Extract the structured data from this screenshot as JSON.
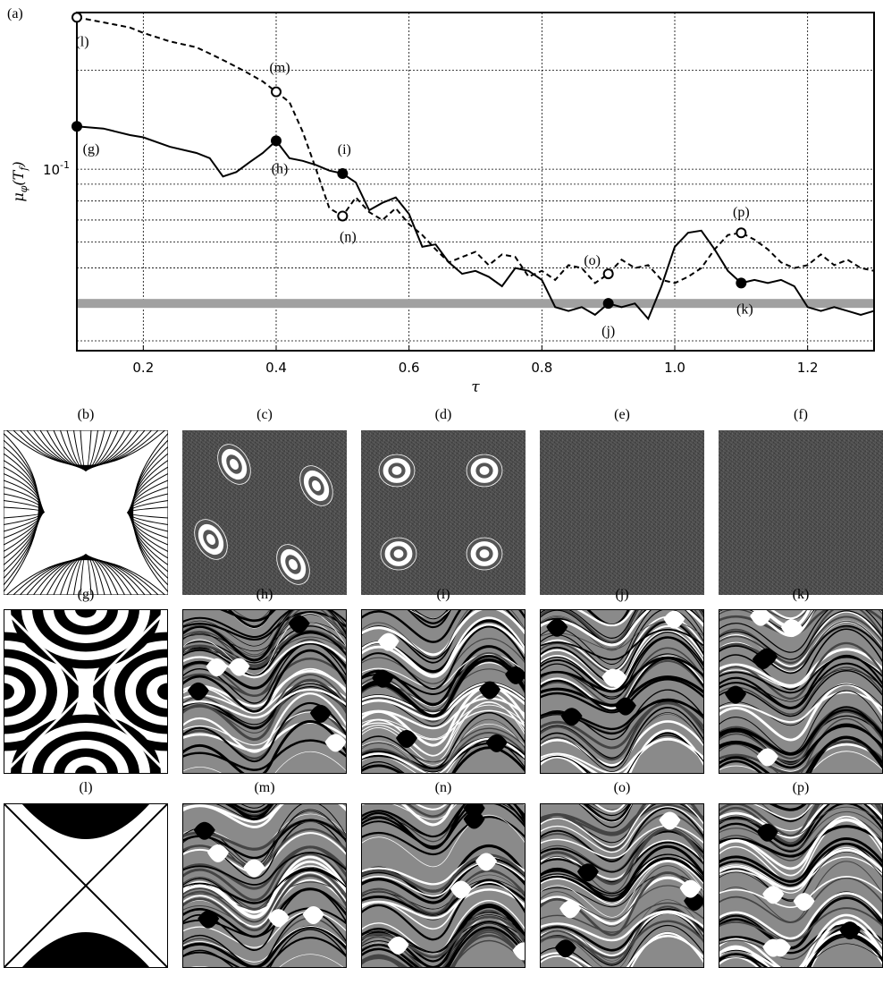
{
  "chart_data": {
    "type": "line",
    "panel_label": "(a)",
    "xlabel": "τ",
    "ylabel": "μ_φ(T_f)",
    "x_ticks": [
      "0.2",
      "0.4",
      "0.6",
      "0.8",
      "1.0",
      "1.2"
    ],
    "x_tick_values": [
      0.2,
      0.4,
      0.6,
      0.8,
      1.0,
      1.2
    ],
    "y_tick_labels": [
      {
        "value": 0.1,
        "label": "10^-1"
      }
    ],
    "xlim": [
      0.1,
      1.3
    ],
    "ylim": [
      0.028,
      0.3
    ],
    "y_scale": "log",
    "grid": true,
    "reference_band": {
      "value": 0.039,
      "color": "#a0a0a0"
    },
    "series": [
      {
        "style": "solid",
        "color": "#000000",
        "x": [
          0.1,
          0.14,
          0.18,
          0.2,
          0.24,
          0.28,
          0.3,
          0.32,
          0.34,
          0.36,
          0.38,
          0.4,
          0.42,
          0.44,
          0.46,
          0.48,
          0.5,
          0.52,
          0.54,
          0.56,
          0.58,
          0.6,
          0.62,
          0.64,
          0.66,
          0.68,
          0.7,
          0.72,
          0.74,
          0.76,
          0.78,
          0.8,
          0.82,
          0.84,
          0.86,
          0.88,
          0.9,
          0.92,
          0.94,
          0.96,
          0.98,
          1.0,
          1.02,
          1.04,
          1.06,
          1.08,
          1.1,
          1.12,
          1.14,
          1.16,
          1.18,
          1.2,
          1.22,
          1.24,
          1.26,
          1.28,
          1.3
        ],
        "y": [
          0.135,
          0.133,
          0.127,
          0.125,
          0.117,
          0.112,
          0.108,
          0.095,
          0.098,
          0.105,
          0.112,
          0.122,
          0.108,
          0.106,
          0.103,
          0.099,
          0.097,
          0.091,
          0.075,
          0.079,
          0.082,
          0.073,
          0.058,
          0.059,
          0.052,
          0.048,
          0.049,
          0.047,
          0.044,
          0.05,
          0.049,
          0.046,
          0.038,
          0.037,
          0.038,
          0.036,
          0.039,
          0.038,
          0.039,
          0.035,
          0.044,
          0.058,
          0.064,
          0.065,
          0.057,
          0.049,
          0.045,
          0.046,
          0.045,
          0.046,
          0.044,
          0.038,
          0.037,
          0.038,
          0.037,
          0.036,
          0.037
        ]
      },
      {
        "style": "dashed",
        "color": "#000000",
        "x": [
          0.1,
          0.14,
          0.18,
          0.2,
          0.24,
          0.28,
          0.3,
          0.32,
          0.34,
          0.36,
          0.38,
          0.4,
          0.42,
          0.44,
          0.46,
          0.48,
          0.5,
          0.52,
          0.54,
          0.56,
          0.58,
          0.6,
          0.62,
          0.64,
          0.66,
          0.68,
          0.7,
          0.72,
          0.74,
          0.76,
          0.78,
          0.8,
          0.82,
          0.84,
          0.86,
          0.88,
          0.9,
          0.92,
          0.94,
          0.96,
          0.98,
          1.0,
          1.02,
          1.04,
          1.06,
          1.08,
          1.1,
          1.12,
          1.14,
          1.16,
          1.18,
          1.2,
          1.22,
          1.24,
          1.26,
          1.28,
          1.3
        ],
        "y": [
          0.29,
          0.28,
          0.27,
          0.26,
          0.245,
          0.235,
          0.225,
          0.215,
          0.205,
          0.195,
          0.185,
          0.172,
          0.16,
          0.13,
          0.1,
          0.076,
          0.072,
          0.082,
          0.074,
          0.07,
          0.076,
          0.068,
          0.063,
          0.057,
          0.052,
          0.054,
          0.056,
          0.051,
          0.055,
          0.054,
          0.047,
          0.049,
          0.046,
          0.051,
          0.05,
          0.045,
          0.048,
          0.053,
          0.05,
          0.051,
          0.046,
          0.045,
          0.047,
          0.05,
          0.057,
          0.063,
          0.064,
          0.061,
          0.057,
          0.052,
          0.05,
          0.051,
          0.055,
          0.051,
          0.053,
          0.05,
          0.049
        ]
      }
    ],
    "markers": [
      {
        "label": "(g)",
        "x": 0.1,
        "y": 0.135,
        "filled": true
      },
      {
        "label": "(h)",
        "x": 0.4,
        "y": 0.122,
        "filled": true
      },
      {
        "label": "(i)",
        "x": 0.5,
        "y": 0.097,
        "filled": true
      },
      {
        "label": "(j)",
        "x": 0.9,
        "y": 0.039,
        "filled": true
      },
      {
        "label": "(k)",
        "x": 1.1,
        "y": 0.045,
        "filled": true
      },
      {
        "label": "(l)",
        "x": 0.1,
        "y": 0.29,
        "filled": false
      },
      {
        "label": "(m)",
        "x": 0.4,
        "y": 0.172,
        "filled": false
      },
      {
        "label": "(n)",
        "x": 0.5,
        "y": 0.072,
        "filled": false
      },
      {
        "label": "(o)",
        "x": 0.9,
        "y": 0.048,
        "filled": false
      },
      {
        "label": "(p)",
        "x": 1.1,
        "y": 0.064,
        "filled": false
      }
    ]
  },
  "panels": {
    "row1": [
      {
        "label": "(b)",
        "kind": "streamlines"
      },
      {
        "label": "(c)",
        "kind": "noise-islands-tilted"
      },
      {
        "label": "(d)",
        "kind": "noise-islands-small"
      },
      {
        "label": "(e)",
        "kind": "noise"
      },
      {
        "label": "(f)",
        "kind": "noise"
      }
    ],
    "row2": [
      {
        "label": "(g)",
        "kind": "bands"
      },
      {
        "label": "(h)",
        "kind": "mixing"
      },
      {
        "label": "(i)",
        "kind": "mixing"
      },
      {
        "label": "(j)",
        "kind": "mixing"
      },
      {
        "label": "(k)",
        "kind": "mixing"
      }
    ],
    "row3": [
      {
        "label": "(l)",
        "kind": "cells"
      },
      {
        "label": "(m)",
        "kind": "mixing"
      },
      {
        "label": "(n)",
        "kind": "mixing"
      },
      {
        "label": "(o)",
        "kind": "mixing"
      },
      {
        "label": "(p)",
        "kind": "mixing"
      }
    ]
  }
}
